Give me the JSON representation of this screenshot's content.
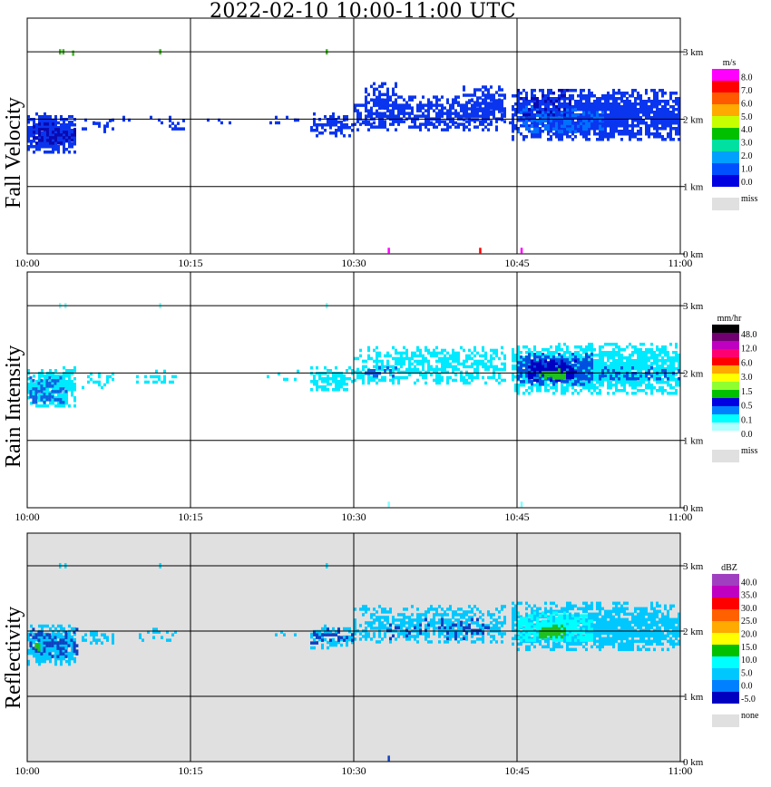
{
  "title": "2022-02-10   10:00-11:00 UTC",
  "colors": {
    "miss": "#e0e0e0",
    "axis": "#000000"
  },
  "chart_data": [
    {
      "type": "heatmap",
      "id": "fall",
      "ylabel": "Fall Velocity",
      "unit": "m/s",
      "x_ticks": [
        "10:00",
        "10:15",
        "10:30",
        "10:45",
        "11:00"
      ],
      "xlim": [
        "10:00",
        "11:00"
      ],
      "y_ticks": [
        "0 km",
        "1 km",
        "2 km",
        "3 km"
      ],
      "ylim": [
        0,
        3.5
      ],
      "grid": true,
      "background": "#ffffff",
      "legend_labels": [
        "8.0",
        "7.0",
        "6.0",
        "5.0",
        "4.0",
        "3.0",
        "2.0",
        "1.0",
        "0.0"
      ],
      "legend_colors": [
        "#ff00ff",
        "#ff0000",
        "#ff5a00",
        "#ffaa00",
        "#c8ff00",
        "#00c000",
        "#00e0a0",
        "#00a0ff",
        "#0050ff",
        "#0000e0"
      ],
      "miss_label": "miss",
      "echo": [
        {
          "t0": 0,
          "t1": 4.5,
          "z0": 1.5,
          "z1": 2.1,
          "color": "#0a35ee",
          "density": 0.9
        },
        {
          "t0": 0.5,
          "t1": 4.5,
          "z0": 1.65,
          "z1": 1.95,
          "color": "#0a0ab0",
          "density": 0.45
        },
        {
          "t0": 5,
          "t1": 8,
          "z0": 1.8,
          "z1": 2.0,
          "color": "#0a35ee",
          "density": 0.35
        },
        {
          "t0": 13,
          "t1": 14.5,
          "z0": 1.85,
          "z1": 2.0,
          "color": "#0a35ee",
          "density": 0.35
        },
        {
          "t0": 22,
          "t1": 25,
          "z0": 1.9,
          "z1": 2.05,
          "color": "#0a35ee",
          "density": 0.2
        },
        {
          "t0": 26,
          "t1": 30,
          "z0": 1.75,
          "z1": 2.1,
          "color": "#0a35ee",
          "density": 0.6
        },
        {
          "t0": 30,
          "t1": 44,
          "z0": 1.85,
          "z1": 2.35,
          "color": "#0a35ee",
          "density": 0.55
        },
        {
          "t0": 31,
          "t1": 34,
          "z0": 2.0,
          "z1": 2.55,
          "color": "#0a35ee",
          "density": 0.65
        },
        {
          "t0": 40,
          "t1": 44,
          "z0": 2.0,
          "z1": 2.5,
          "color": "#0a35ee",
          "density": 0.6
        },
        {
          "t0": 44.5,
          "t1": 60,
          "z0": 1.7,
          "z1": 2.45,
          "color": "#0a35ee",
          "density": 0.85
        },
        {
          "t0": 45,
          "t1": 53,
          "z0": 1.8,
          "z1": 2.2,
          "color": "#0070ff",
          "density": 0.4
        },
        {
          "t0": 45,
          "t1": 50,
          "z0": 2.05,
          "z1": 2.45,
          "color": "#0a0ab0",
          "density": 0.25
        },
        {
          "t0": 0,
          "t1": 60,
          "z0": 1.95,
          "z1": 2.05,
          "color": "#0a35ee",
          "density": 0.12
        }
      ],
      "specks": [
        {
          "t": 3.0,
          "z": 3.0,
          "color": "#40c020"
        },
        {
          "t": 3.3,
          "z": 3.0,
          "color": "#40c020"
        },
        {
          "t": 4.2,
          "z": 2.98,
          "color": "#40c020"
        },
        {
          "t": 12.2,
          "z": 3.0,
          "color": "#40c020"
        },
        {
          "t": 27.5,
          "z": 3.0,
          "color": "#40c020"
        },
        {
          "t": 33.2,
          "z": 0.05,
          "color": "#ff00ff"
        },
        {
          "t": 41.6,
          "z": 0.05,
          "color": "#ff0000"
        },
        {
          "t": 45.4,
          "z": 0.05,
          "color": "#ff00ff"
        }
      ]
    },
    {
      "type": "heatmap",
      "id": "rain",
      "ylabel": "Rain Intensity",
      "unit": "mm/hr",
      "x_ticks": [
        "10:00",
        "10:15",
        "10:30",
        "10:45",
        "11:00"
      ],
      "xlim": [
        "10:00",
        "11:00"
      ],
      "y_ticks": [
        "0 km",
        "1 km",
        "2 km",
        "3 km"
      ],
      "ylim": [
        0,
        3.5
      ],
      "grid": true,
      "background": "#ffffff",
      "legend_labels": [
        "48.0",
        "12.0",
        "6.0",
        "3.0",
        "1.5",
        "0.5",
        "0.1",
        "0.0"
      ],
      "legend_colors": [
        "#000000",
        "#700070",
        "#c000c0",
        "#ff0070",
        "#ff0000",
        "#ffaa00",
        "#ffff00",
        "#90ff30",
        "#00c000",
        "#0000e0",
        "#0080ff",
        "#00ffff",
        "#b0ffff",
        "#ffffff"
      ],
      "miss_label": "miss",
      "echo": [
        {
          "t0": 0,
          "t1": 4.5,
          "z0": 1.5,
          "z1": 2.1,
          "color": "#00eaff",
          "density": 0.85
        },
        {
          "t0": 0.2,
          "t1": 3.5,
          "z0": 1.55,
          "z1": 1.95,
          "color": "#1060e0",
          "density": 0.5
        },
        {
          "t0": 5,
          "t1": 8,
          "z0": 1.8,
          "z1": 2.05,
          "color": "#00eaff",
          "density": 0.35
        },
        {
          "t0": 10,
          "t1": 14,
          "z0": 1.85,
          "z1": 2.05,
          "color": "#00eaff",
          "density": 0.3
        },
        {
          "t0": 22,
          "t1": 25,
          "z0": 1.9,
          "z1": 2.05,
          "color": "#00eaff",
          "density": 0.2
        },
        {
          "t0": 26,
          "t1": 30,
          "z0": 1.75,
          "z1": 2.1,
          "color": "#00eaff",
          "density": 0.6
        },
        {
          "t0": 30,
          "t1": 44,
          "z0": 1.85,
          "z1": 2.4,
          "color": "#00eaff",
          "density": 0.6
        },
        {
          "t0": 31,
          "t1": 34,
          "z0": 1.95,
          "z1": 2.1,
          "color": "#1060e0",
          "density": 0.35
        },
        {
          "t0": 44.5,
          "t1": 60,
          "z0": 1.7,
          "z1": 2.45,
          "color": "#00eaff",
          "density": 0.85
        },
        {
          "t0": 45,
          "t1": 52,
          "z0": 1.85,
          "z1": 2.3,
          "color": "#0050e0",
          "density": 0.75
        },
        {
          "t0": 46,
          "t1": 50.5,
          "z0": 1.9,
          "z1": 2.2,
          "color": "#0000c0",
          "density": 0.8
        },
        {
          "t0": 47,
          "t1": 49.5,
          "z0": 1.93,
          "z1": 2.07,
          "color": "#20c020",
          "density": 0.95
        },
        {
          "t0": 52,
          "t1": 60,
          "z0": 1.9,
          "z1": 2.1,
          "color": "#0050e0",
          "density": 0.35
        }
      ],
      "specks": [
        {
          "t": 3.0,
          "z": 3.0,
          "color": "#80ffff"
        },
        {
          "t": 3.5,
          "z": 3.0,
          "color": "#80ffff"
        },
        {
          "t": 12.2,
          "z": 3.0,
          "color": "#80ffff"
        },
        {
          "t": 27.5,
          "z": 3.0,
          "color": "#80ffff"
        },
        {
          "t": 33.2,
          "z": 0.05,
          "color": "#80ffff"
        },
        {
          "t": 45.4,
          "z": 0.05,
          "color": "#80ffff"
        }
      ]
    },
    {
      "type": "heatmap",
      "id": "refl",
      "ylabel": "Reflectivity",
      "unit": "dBZ",
      "x_ticks": [
        "10:00",
        "10:15",
        "10:30",
        "10:45",
        "11:00"
      ],
      "xlim": [
        "10:00",
        "11:00"
      ],
      "y_ticks": [
        "0 km",
        "1 km",
        "2 km",
        "3 km"
      ],
      "ylim": [
        0,
        3.5
      ],
      "grid": true,
      "background": "#e0e0e0",
      "legend_labels": [
        "40.0",
        "35.0",
        "30.0",
        "25.0",
        "20.0",
        "15.0",
        "10.0",
        "5.0",
        "0.0",
        "-5.0"
      ],
      "legend_colors": [
        "#a040c0",
        "#c000c0",
        "#ff0000",
        "#ff6000",
        "#ffaa00",
        "#ffff00",
        "#00c000",
        "#00ffff",
        "#00c8ff",
        "#0080ff",
        "#0000c0"
      ],
      "miss_label": "none",
      "echo": [
        {
          "t0": 0,
          "t1": 4.5,
          "z0": 1.5,
          "z1": 2.1,
          "color": "#00c8ff",
          "density": 0.9
        },
        {
          "t0": 0.2,
          "t1": 4.5,
          "z0": 1.6,
          "z1": 2.05,
          "color": "#1040c0",
          "density": 0.45
        },
        {
          "t0": 0.7,
          "t1": 1.1,
          "z0": 1.72,
          "z1": 1.82,
          "color": "#20c020",
          "density": 1.0
        },
        {
          "t0": 5,
          "t1": 8,
          "z0": 1.8,
          "z1": 2.05,
          "color": "#00c8ff",
          "density": 0.35
        },
        {
          "t0": 10,
          "t1": 14,
          "z0": 1.85,
          "z1": 2.05,
          "color": "#00c8ff",
          "density": 0.3
        },
        {
          "t0": 22,
          "t1": 25,
          "z0": 1.9,
          "z1": 2.05,
          "color": "#00c8ff",
          "density": 0.2
        },
        {
          "t0": 26,
          "t1": 30,
          "z0": 1.75,
          "z1": 2.1,
          "color": "#00c8ff",
          "density": 0.6
        },
        {
          "t0": 26,
          "t1": 30,
          "z0": 1.8,
          "z1": 2.05,
          "color": "#1040c0",
          "density": 0.3
        },
        {
          "t0": 30,
          "t1": 44,
          "z0": 1.85,
          "z1": 2.4,
          "color": "#00c8ff",
          "density": 0.6
        },
        {
          "t0": 33,
          "t1": 43,
          "z0": 1.9,
          "z1": 2.2,
          "color": "#1040c0",
          "density": 0.2
        },
        {
          "t0": 44.5,
          "t1": 60,
          "z0": 1.7,
          "z1": 2.45,
          "color": "#00c8ff",
          "density": 0.85
        },
        {
          "t0": 45,
          "t1": 52,
          "z0": 1.85,
          "z1": 2.3,
          "color": "#00ffff",
          "density": 0.75
        },
        {
          "t0": 47,
          "t1": 49.5,
          "z0": 1.92,
          "z1": 2.1,
          "color": "#20c020",
          "density": 0.95
        }
      ],
      "specks": [
        {
          "t": 3.0,
          "z": 3.0,
          "color": "#00e0ff"
        },
        {
          "t": 3.5,
          "z": 3.0,
          "color": "#00e0ff"
        },
        {
          "t": 12.2,
          "z": 3.0,
          "color": "#00e0ff"
        },
        {
          "t": 27.5,
          "z": 3.0,
          "color": "#00e0ff"
        },
        {
          "t": 33.2,
          "z": 0.05,
          "color": "#1040c0"
        }
      ]
    }
  ]
}
